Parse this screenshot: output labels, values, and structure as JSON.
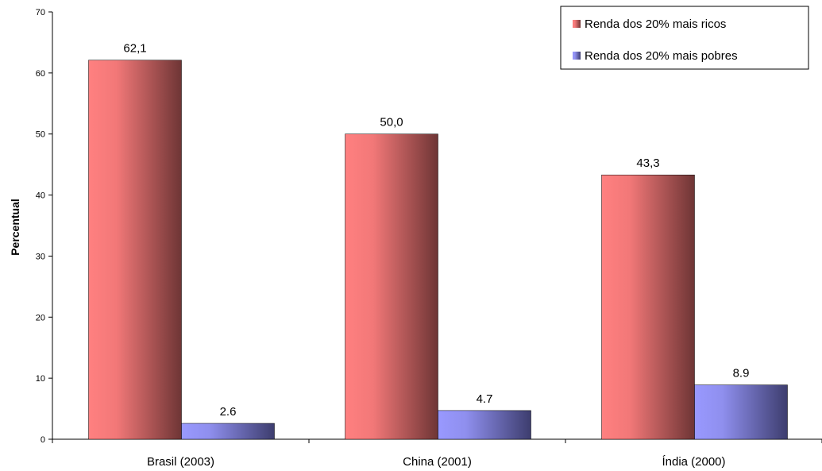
{
  "chart_data": {
    "type": "bar",
    "title": "",
    "xlabel": "",
    "ylabel": "Percentual",
    "ylim": [
      0,
      70
    ],
    "yticks": [
      "0",
      "10",
      "20",
      "30",
      "40",
      "50",
      "60",
      "70"
    ],
    "grid": false,
    "legend_position": "top-right",
    "categories": [
      "Brasil (2003)",
      "China (2001)",
      "Índia (2000)"
    ],
    "series": [
      {
        "name": "Renda dos 20% mais ricos",
        "values": [
          62.1,
          50.0,
          43.3
        ],
        "labels": [
          "62,1",
          "50,0",
          "43,3"
        ],
        "color": "#ff8080",
        "color_dark": "#6e3535"
      },
      {
        "name": "Renda dos 20% mais pobres",
        "values": [
          2.6,
          4.7,
          8.9
        ],
        "labels": [
          "2.6",
          "4.7",
          "8.9"
        ],
        "color": "#9999ff",
        "color_dark": "#3d3d6e"
      }
    ]
  }
}
